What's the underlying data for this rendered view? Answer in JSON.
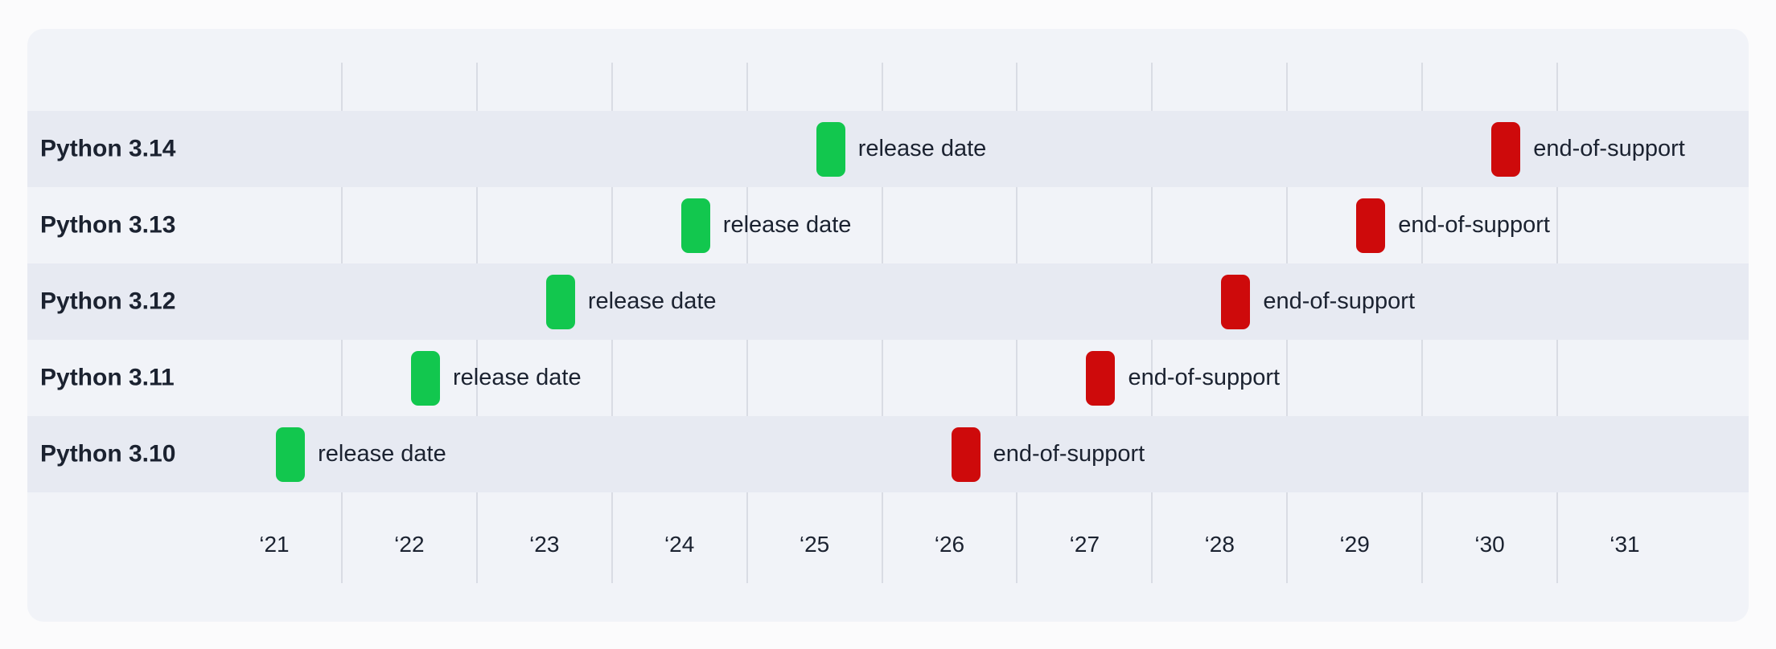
{
  "page": {
    "background": "#fbfbfc"
  },
  "card": {
    "background": "#f1f3f8",
    "band_color": "#e7eaf2",
    "gridline_color": "#d9dce4",
    "text_color": "#1b2230"
  },
  "chart_data": {
    "type": "gantt",
    "description": "Timeline of Python version release and end-of-support dates",
    "rows": [
      {
        "label": "Python 3.14",
        "release": {
          "label": "release date",
          "year": 2025.62
        },
        "end_of_support": {
          "label": "end-of-support",
          "year": 2030.62
        }
      },
      {
        "label": "Python 3.13",
        "release": {
          "label": "release date",
          "year": 2024.62
        },
        "end_of_support": {
          "label": "end-of-support",
          "year": 2029.62
        }
      },
      {
        "label": "Python 3.12",
        "release": {
          "label": "release date",
          "year": 2023.62
        },
        "end_of_support": {
          "label": "end-of-support",
          "year": 2028.62
        }
      },
      {
        "label": "Python 3.11",
        "release": {
          "label": "release date",
          "year": 2022.62
        },
        "end_of_support": {
          "label": "end-of-support",
          "year": 2027.62
        }
      },
      {
        "label": "Python 3.10",
        "release": {
          "label": "release date",
          "year": 2021.62
        },
        "end_of_support": {
          "label": "end-of-support",
          "year": 2026.62
        }
      }
    ],
    "x_axis": {
      "tick_labels": [
        "‘21",
        "‘22",
        "‘23",
        "‘24",
        "‘25",
        "‘26",
        "‘27",
        "‘28",
        "‘29",
        "‘30",
        "‘31"
      ],
      "tick_years": [
        2021,
        2022,
        2023,
        2024,
        2025,
        2026,
        2027,
        2028,
        2029,
        2030,
        2031
      ],
      "gridline_years": [
        2022,
        2023,
        2024,
        2025,
        2026,
        2027,
        2028,
        2029,
        2030,
        2031
      ],
      "x_min": 2019.9,
      "x_max": 2032.4,
      "grid": true
    },
    "legend_position": "none",
    "colors": {
      "release": "#12c74e",
      "end_of_support": "#ce0a0b"
    }
  }
}
